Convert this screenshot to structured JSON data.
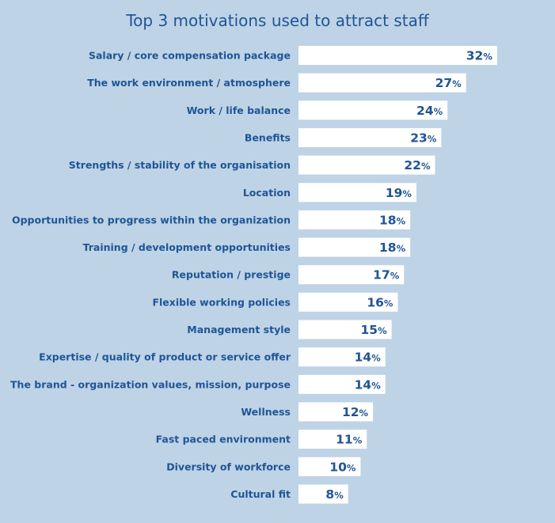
{
  "chart_data": {
    "type": "bar",
    "orientation": "horizontal",
    "title": "Top 3 motivations used to attract staff",
    "value_suffix": "%",
    "categories": [
      "Salary / core compensation package",
      "The work environment / atmosphere",
      "Work / life balance",
      "Benefits",
      "Strengths / stability of the organisation",
      "Location",
      "Opportunities to progress within the organization",
      "Training / development opportunities",
      "Reputation / prestige",
      "Flexible working policies",
      "Management style",
      "Expertise / quality of product or service offer",
      "The brand - organization values, mission, purpose",
      "Wellness",
      "Fast paced environment",
      "Diversity of workforce",
      "Cultural fit"
    ],
    "values": [
      32,
      27,
      24,
      23,
      22,
      19,
      18,
      18,
      17,
      16,
      15,
      14,
      14,
      12,
      11,
      10,
      8
    ],
    "xlabel": "",
    "ylabel": "",
    "grid": false,
    "legend": "none",
    "colors": {
      "background": "#bed3e6",
      "bar": "#ffffff",
      "text": "#1f5596"
    }
  }
}
